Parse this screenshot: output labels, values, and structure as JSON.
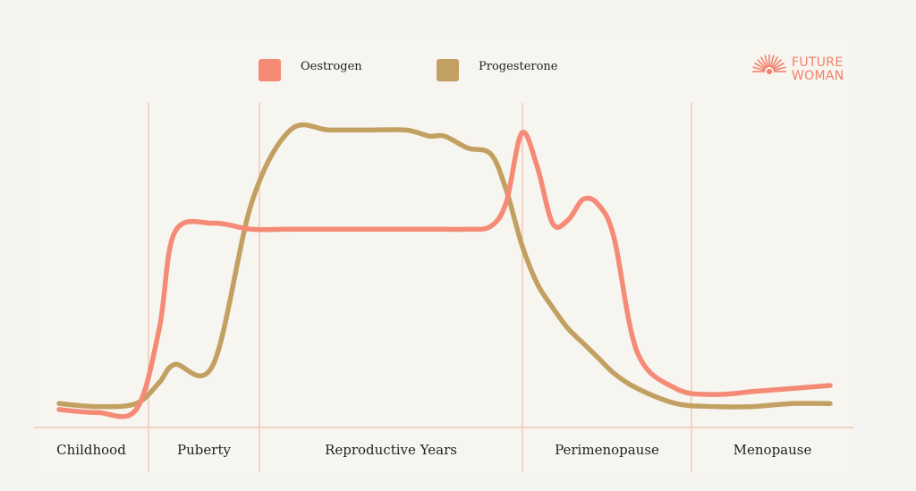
{
  "logo": {
    "line1": "FUTURE",
    "line2": "WOMAN",
    "color": "#f3806c"
  },
  "chart_data": {
    "type": "line",
    "title": "",
    "xlabel": "",
    "ylabel": "",
    "legend_position": "top-center",
    "grid": false,
    "phases": [
      "Childhood",
      "Puberty",
      "Reproductive Years",
      "Perimenopause",
      "Menopause"
    ],
    "x": [
      0,
      5,
      10,
      13,
      15,
      20,
      25,
      30,
      35,
      40,
      45,
      48,
      50,
      53,
      56,
      58,
      60,
      62,
      64,
      66,
      68,
      70,
      72,
      75,
      80,
      85,
      90,
      95,
      100
    ],
    "xlim": [
      0,
      100
    ],
    "ylim": [
      0,
      100
    ],
    "series": [
      {
        "name": "Oestrogen",
        "color": "#f58a76",
        "values": [
          3,
          2,
          3,
          30,
          62,
          65,
          63,
          63,
          63,
          63,
          63,
          63,
          63,
          63,
          64,
          72,
          95,
          84,
          65,
          66,
          73,
          71,
          60,
          22,
          10,
          8,
          9,
          10,
          11
        ]
      },
      {
        "name": "Progesterone",
        "color": "#c2a062",
        "values": [
          5,
          4,
          5,
          12,
          18,
          18,
          72,
          96,
          96,
          96,
          96,
          94,
          94,
          90,
          88,
          76,
          58,
          45,
          37,
          30,
          25,
          20,
          15,
          10,
          5,
          4,
          4,
          5,
          5
        ]
      }
    ]
  }
}
